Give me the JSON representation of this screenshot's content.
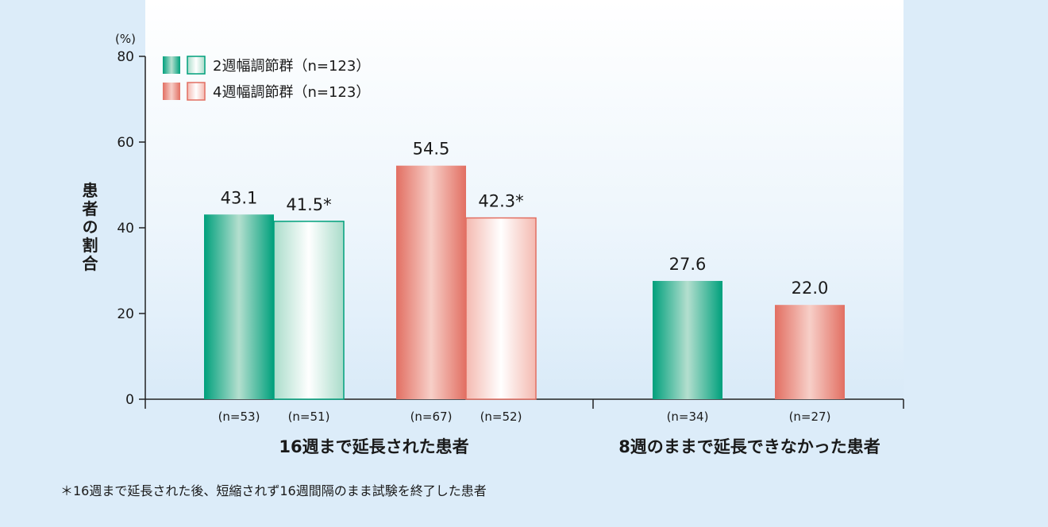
{
  "chart_data": {
    "type": "bar",
    "y_unit": "(%)",
    "ylabel": "患者の割合",
    "ylim": [
      0,
      80
    ],
    "yticks": [
      0,
      20,
      40,
      60,
      80
    ],
    "grid": false,
    "legend_placement": "top-left",
    "legend": [
      {
        "label": "2週幅調節群（n=123）",
        "color": "#00a07c"
      },
      {
        "label": "4週幅調節群（n=123）",
        "color": "#e26f62"
      }
    ],
    "groups": [
      {
        "label": "16週まで延長された患者",
        "bars": [
          {
            "value": 43.1,
            "value_label": "43.1",
            "n_label": "(n=53)",
            "group": "2週幅調節群",
            "variant": "solid",
            "color": "#00a07c"
          },
          {
            "value": 41.5,
            "value_label": "41.5*",
            "n_label": "(n=51)",
            "group": "2週幅調節群",
            "variant": "light",
            "color": "#00a07c"
          },
          {
            "value": 54.5,
            "value_label": "54.5",
            "n_label": "(n=67)",
            "group": "4週幅調節群",
            "variant": "solid",
            "color": "#e26f62"
          },
          {
            "value": 42.3,
            "value_label": "42.3*",
            "n_label": "(n=52)",
            "group": "4週幅調節群",
            "variant": "light",
            "color": "#e26f62"
          }
        ]
      },
      {
        "label": "8週のままで延長できなかった患者",
        "bars": [
          {
            "value": 27.6,
            "value_label": "27.6",
            "n_label": "(n=34)",
            "group": "2週幅調節群",
            "variant": "solid",
            "color": "#00a07c"
          },
          {
            "value": 22.0,
            "value_label": "22.0",
            "n_label": "(n=27)",
            "group": "4週幅調節群",
            "variant": "solid",
            "color": "#e26f62"
          }
        ]
      }
    ],
    "footnote": "＊16週まで延長された後、短縮されず16週間隔のまま試験を終了した患者"
  }
}
